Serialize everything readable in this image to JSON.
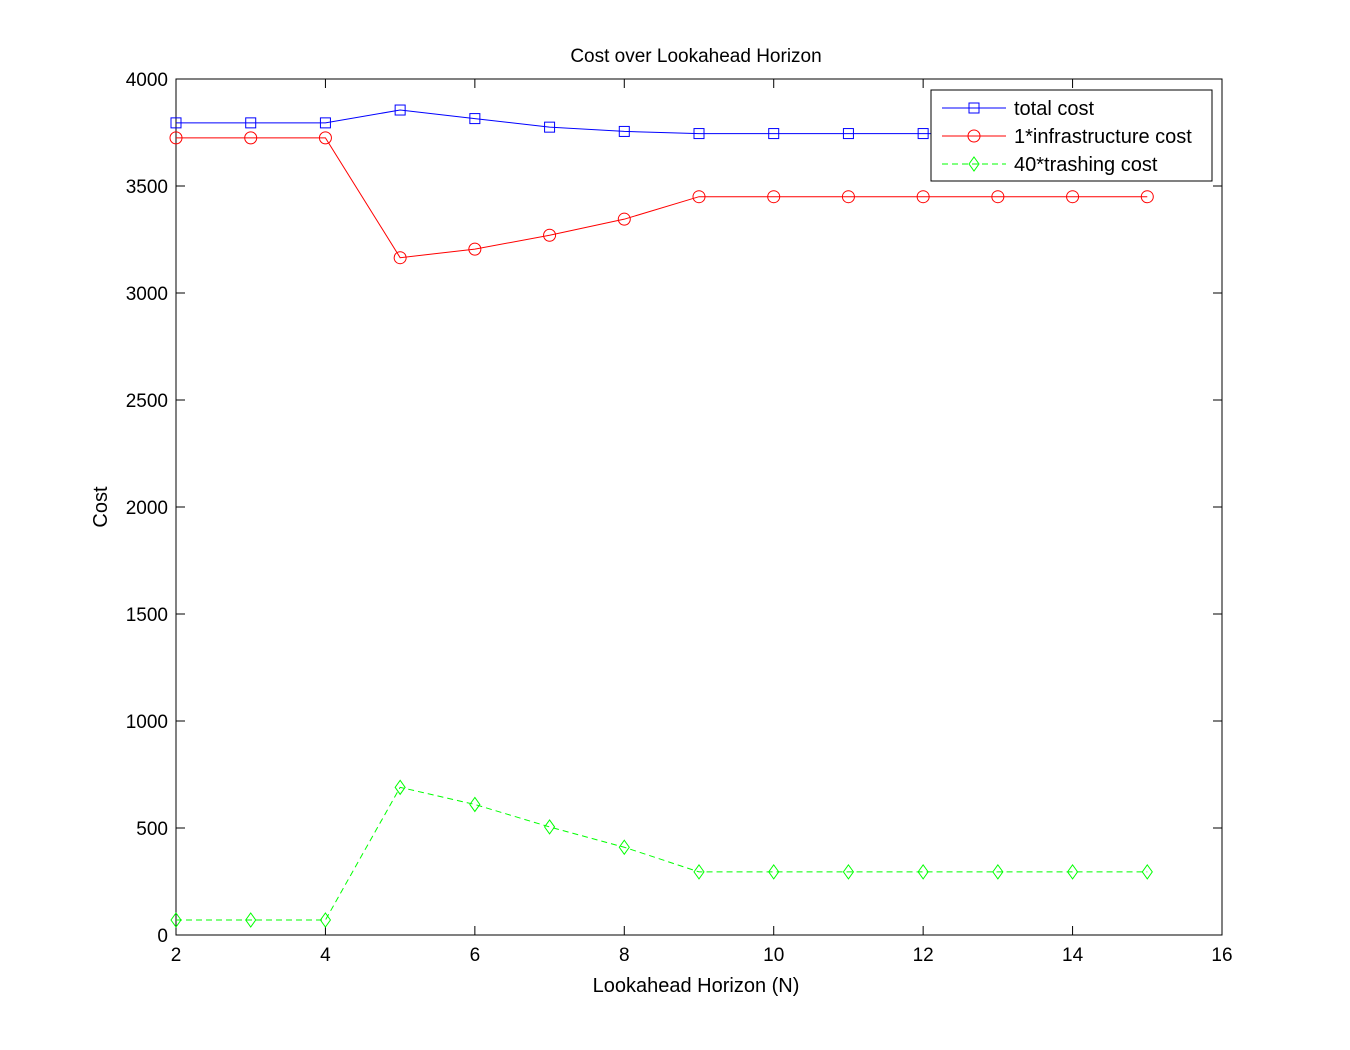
{
  "chart_data": {
    "type": "line",
    "title": "Cost over Lookahead Horizon",
    "xlabel": "Lookahead Horizon (N)",
    "ylabel": "Cost",
    "xlim": [
      2,
      16
    ],
    "ylim": [
      0,
      4000
    ],
    "xticks": [
      2,
      4,
      6,
      8,
      10,
      12,
      14,
      16
    ],
    "yticks": [
      0,
      500,
      1000,
      1500,
      2000,
      2500,
      3000,
      3500,
      4000
    ],
    "grid": false,
    "legend_position": "top-right",
    "x": [
      2,
      3,
      4,
      5,
      6,
      7,
      8,
      9,
      10,
      11,
      12,
      13,
      14,
      15
    ],
    "series": [
      {
        "name": "total cost",
        "color": "#0000ff",
        "marker": "square",
        "line_style": "solid",
        "values": [
          3795,
          3795,
          3795,
          3855,
          3815,
          3775,
          3755,
          3745,
          3745,
          3745,
          3745,
          3745,
          3745,
          3745
        ]
      },
      {
        "name": "1*infrastructure cost",
        "color": "#ff0000",
        "marker": "circle",
        "line_style": "solid",
        "values": [
          3725,
          3725,
          3725,
          3165,
          3205,
          3270,
          3345,
          3450,
          3450,
          3450,
          3450,
          3450,
          3450,
          3450
        ]
      },
      {
        "name": "40*trashing cost",
        "color": "#00ff00",
        "marker": "diamond",
        "line_style": "dashed",
        "values": [
          70,
          70,
          70,
          690,
          610,
          505,
          410,
          295,
          295,
          295,
          295,
          295,
          295,
          295
        ]
      }
    ]
  }
}
